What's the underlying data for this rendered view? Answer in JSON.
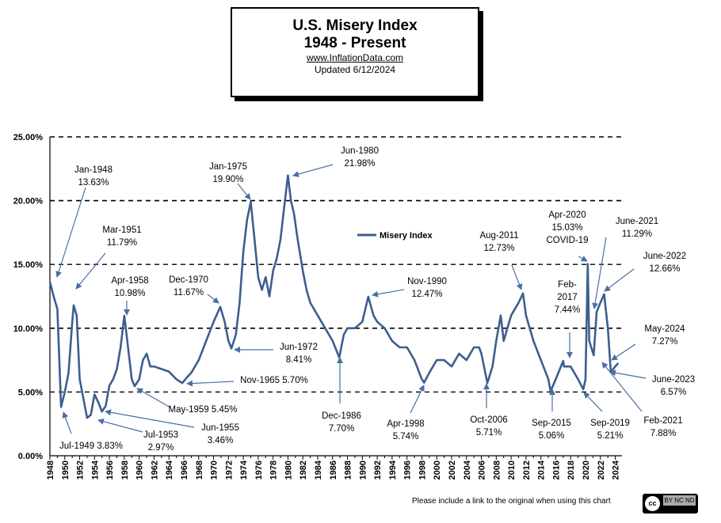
{
  "header": {
    "title_line1": "U.S. Misery Index",
    "title_line2": "1948 - Present",
    "website": "www.InflationData.com",
    "updated": "Updated  6/12/2024"
  },
  "footer": {
    "note": "Please include a link to the original when using this chart",
    "license_badge": {
      "cc": "cc",
      "license": "BY NC ND"
    }
  },
  "chart_data": {
    "type": "line",
    "title": "",
    "xlabel": "",
    "ylabel": "",
    "xlim": [
      1948,
      2024.9
    ],
    "ylim": [
      0,
      25
    ],
    "y_ticks": [
      "0.00%",
      "5.00%",
      "10.00%",
      "15.00%",
      "20.00%",
      "25.00%"
    ],
    "x_ticks": [
      "1948",
      "1950",
      "1952",
      "1954",
      "1956",
      "1958",
      "1960",
      "1962",
      "1964",
      "1966",
      "1968",
      "1970",
      "1972",
      "1974",
      "1976",
      "1978",
      "1980",
      "1982",
      "1984",
      "1986",
      "1988",
      "1990",
      "1992",
      "1994",
      "1996",
      "1998",
      "2000",
      "2002",
      "2004",
      "2006",
      "2008",
      "2010",
      "2012",
      "2014",
      "2016",
      "2018",
      "2020",
      "2022",
      "2024"
    ],
    "grid": "dashed horizontal",
    "legend_position": "top-center",
    "line_color": "#3d5e8f",
    "series": [
      {
        "name": "Misery Index",
        "x": [
          1948.0,
          1948.5,
          1949.0,
          1949.5,
          1950.0,
          1950.5,
          1951.0,
          1951.2,
          1951.6,
          1952.0,
          1952.5,
          1953.0,
          1953.5,
          1954.0,
          1954.5,
          1955.0,
          1955.5,
          1956.0,
          1956.5,
          1957.0,
          1957.5,
          1958.0,
          1958.3,
          1958.7,
          1959.0,
          1959.4,
          1960.0,
          1960.5,
          1961.0,
          1961.5,
          1962.0,
          1963.0,
          1964.0,
          1965.0,
          1965.8,
          1966.5,
          1967.0,
          1968.0,
          1969.0,
          1970.0,
          1970.9,
          1971.5,
          1972.0,
          1972.4,
          1973.0,
          1973.5,
          1974.0,
          1974.5,
          1975.0,
          1975.5,
          1976.0,
          1976.5,
          1977.0,
          1977.5,
          1978.0,
          1978.5,
          1979.0,
          1979.5,
          1980.0,
          1980.4,
          1980.8,
          1981.3,
          1982.0,
          1982.5,
          1983.0,
          1983.5,
          1984.0,
          1985.0,
          1986.0,
          1986.9,
          1987.5,
          1988.0,
          1989.0,
          1990.0,
          1990.8,
          1991.5,
          1992.0,
          1993.0,
          1994.0,
          1995.0,
          1996.0,
          1997.0,
          1998.0,
          1998.3,
          1999.0,
          2000.0,
          2001.0,
          2002.0,
          2003.0,
          2004.0,
          2005.0,
          2005.7,
          2006.0,
          2006.8,
          2007.5,
          2008.0,
          2008.6,
          2009.0,
          2009.5,
          2010.0,
          2011.0,
          2011.6,
          2012.0,
          2013.0,
          2014.0,
          2015.0,
          2015.3,
          2016.0,
          2017.0,
          2017.1,
          2018.0,
          2019.0,
          2019.7,
          2020.0,
          2020.3,
          2020.5,
          2021.1,
          2021.5,
          2022.0,
          2022.5,
          2023.0,
          2023.4,
          2024.0,
          2024.4
        ],
        "values": [
          13.63,
          12.5,
          11.5,
          3.83,
          5.0,
          6.5,
          10.5,
          11.79,
          11.0,
          6.0,
          4.5,
          2.97,
          3.2,
          4.8,
          4.2,
          3.46,
          3.9,
          5.5,
          6.0,
          6.8,
          8.5,
          10.98,
          9.5,
          7.5,
          6.0,
          5.45,
          6.0,
          7.5,
          8.0,
          7.0,
          7.0,
          6.8,
          6.6,
          6.0,
          5.7,
          6.2,
          6.5,
          7.5,
          9.0,
          10.5,
          11.67,
          10.5,
          9.0,
          8.41,
          9.5,
          12.0,
          16.0,
          18.5,
          19.9,
          17.0,
          14.0,
          13.0,
          14.0,
          12.5,
          14.5,
          15.5,
          17.0,
          19.5,
          21.98,
          20.0,
          19.0,
          17.0,
          14.5,
          13.0,
          12.0,
          11.5,
          11.0,
          10.0,
          9.0,
          7.7,
          9.5,
          10.0,
          10.0,
          10.5,
          12.47,
          11.0,
          10.5,
          10.0,
          9.0,
          8.5,
          8.5,
          7.5,
          6.0,
          5.74,
          6.5,
          7.5,
          7.5,
          7.0,
          8.0,
          7.5,
          8.5,
          8.5,
          8.0,
          5.71,
          7.0,
          9.0,
          11.0,
          9.0,
          10.0,
          11.0,
          12.0,
          12.73,
          11.0,
          9.0,
          7.5,
          6.0,
          5.06,
          6.0,
          7.44,
          7.0,
          7.0,
          6.0,
          5.21,
          6.0,
          15.03,
          9.0,
          7.88,
          11.29,
          12.0,
          12.66,
          10.0,
          6.57,
          7.0,
          7.27
        ]
      }
    ],
    "annotations": [
      {
        "label": "Jan-1948\n13.63%",
        "date": "Jan-1948",
        "value": 13.63
      },
      {
        "label": "Mar-1951\n11.79%",
        "date": "Mar-1951",
        "value": 11.79
      },
      {
        "label": "Apr-1958\n10.98%",
        "date": "Apr-1958",
        "value": 10.98
      },
      {
        "label": "Dec-1970\n11.67%",
        "date": "Dec-1970",
        "value": 11.67
      },
      {
        "label": "Jan-1975\n19.90%",
        "date": "Jan-1975",
        "value": 19.9
      },
      {
        "label": "Jun-1980\n21.98%",
        "date": "Jun-1980",
        "value": 21.98
      },
      {
        "label": "Jun-1972\n8.41%",
        "date": "Jun-1972",
        "value": 8.41
      },
      {
        "label": "Nov-1965  5.70%",
        "date": "Nov-1965",
        "value": 5.7
      },
      {
        "label": "May-1959  5.45%",
        "date": "May-1959",
        "value": 5.45
      },
      {
        "label": "Jun-1955\n3.46%",
        "date": "Jun-1955",
        "value": 3.46
      },
      {
        "label": "Jul-1953\n2.97%",
        "date": "Jul-1953",
        "value": 2.97
      },
      {
        "label": "Jul-1949  3.83%",
        "date": "Jul-1949",
        "value": 3.83
      },
      {
        "label": "Dec-1986\n7.70%",
        "date": "Dec-1986",
        "value": 7.7
      },
      {
        "label": "Nov-1990\n12.47%",
        "date": "Nov-1990",
        "value": 12.47
      },
      {
        "label": "Apr-1998\n5.74%",
        "date": "Apr-1998",
        "value": 5.74
      },
      {
        "label": "Oct-2006\n5.71%",
        "date": "Oct-2006",
        "value": 5.71
      },
      {
        "label": "Aug-2011\n12.73%",
        "date": "Aug-2011",
        "value": 12.73
      },
      {
        "label": "Sep-2015\n5.06%",
        "date": "Sep-2015",
        "value": 5.06
      },
      {
        "label": "Feb-\n2017\n7.44%",
        "date": "Feb-2017",
        "value": 7.44
      },
      {
        "label": "Apr-2020\n15.03%\nCOVID-19",
        "date": "Apr-2020",
        "value": 15.03
      },
      {
        "label": "Sep-2019\n5.21%",
        "date": "Sep-2019",
        "value": 5.21
      },
      {
        "label": "June-2021\n11.29%",
        "date": "June-2021",
        "value": 11.29
      },
      {
        "label": "June-2022\n12.66%",
        "date": "June-2022",
        "value": 12.66
      },
      {
        "label": "May-2024\n7.27%",
        "date": "May-2024",
        "value": 7.27
      },
      {
        "label": "June-2023\n6.57%",
        "date": "June-2023",
        "value": 6.57
      },
      {
        "label": "Feb-2021\n7.88%",
        "date": "Feb-2021",
        "value": 7.88
      }
    ]
  }
}
